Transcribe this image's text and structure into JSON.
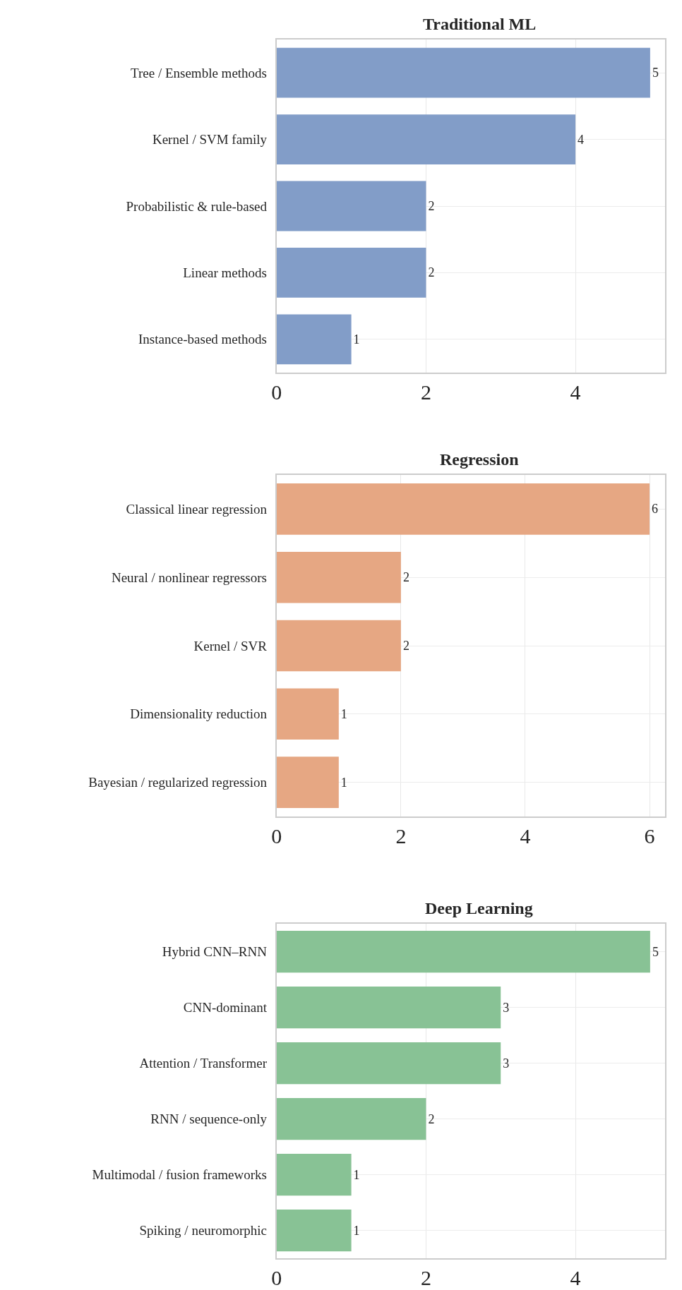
{
  "chart_data": [
    {
      "type": "bar",
      "orientation": "horizontal",
      "title": "Traditional ML",
      "categories": [
        "Tree / Ensemble methods",
        "Kernel / SVM family",
        "Probabilistic & rule-based",
        "Linear methods",
        "Instance-based methods"
      ],
      "values": [
        5,
        4,
        2,
        2,
        1
      ],
      "color": "#829dc8",
      "xlim": [
        0,
        5.2
      ],
      "xticks": [
        0,
        2,
        4
      ],
      "grid": true,
      "data_labels": true
    },
    {
      "type": "bar",
      "orientation": "horizontal",
      "title": "Regression",
      "categories": [
        "Classical linear regression",
        "Neural / nonlinear regressors",
        "Kernel / SVR",
        "Dimensionality reduction",
        "Bayesian / regularized regression"
      ],
      "values": [
        6,
        2,
        2,
        1,
        1
      ],
      "color": "#e6a783",
      "xlim": [
        0,
        6.25
      ],
      "xticks": [
        0,
        2,
        4,
        6
      ],
      "grid": true,
      "data_labels": true
    },
    {
      "type": "bar",
      "orientation": "horizontal",
      "title": "Deep Learning",
      "categories": [
        "Hybrid CNN–RNN",
        "CNN-dominant",
        "Attention / Transformer",
        "RNN / sequence-only",
        "Multimodal / fusion frameworks",
        "Spiking / neuromorphic"
      ],
      "values": [
        5,
        3,
        3,
        2,
        1,
        1
      ],
      "color": "#88c295",
      "xlim": [
        0,
        5.2
      ],
      "xticks": [
        0,
        2,
        4
      ],
      "grid": true,
      "data_labels": true
    }
  ]
}
